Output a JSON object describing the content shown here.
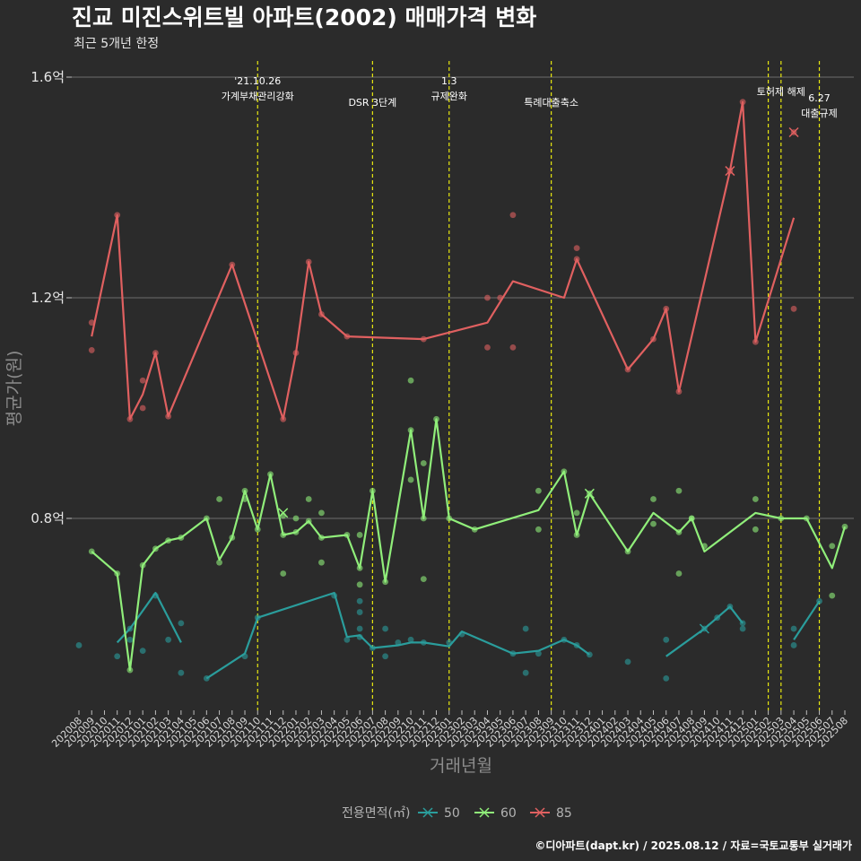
{
  "header": {
    "title": "진교 미진스위트빌 아파트(2002) 매매가격 변화",
    "subtitle": "최근 5개년 한정"
  },
  "caption": "©디아파트(dapt.kr) / 2025.08.12 / 자료=국토교통부 실거래가",
  "chart_data": {
    "type": "line",
    "xlabel": "거래년월",
    "ylabel": "평균가(원)",
    "x_categories": [
      "202008",
      "202009",
      "202010",
      "202011",
      "202012",
      "202101",
      "202102",
      "202103",
      "202104",
      "202105",
      "202106",
      "202107",
      "202108",
      "202109",
      "202110",
      "202111",
      "202112",
      "202201",
      "202202",
      "202203",
      "202204",
      "202205",
      "202206",
      "202207",
      "202208",
      "202209",
      "202210",
      "202211",
      "202212",
      "202301",
      "202302",
      "202303",
      "202304",
      "202305",
      "202306",
      "202307",
      "202308",
      "202309",
      "202310",
      "202311",
      "202312",
      "202401",
      "202402",
      "202403",
      "202404",
      "202405",
      "202406",
      "202407",
      "202408",
      "202409",
      "202410",
      "202411",
      "202412",
      "202501",
      "202502",
      "202503",
      "202504",
      "202505",
      "202506",
      "202507",
      "202508"
    ],
    "ylim": [
      0.45,
      1.64
    ],
    "y_ticks": [
      0.8,
      1.2,
      1.6
    ],
    "y_tick_labels": [
      "0.8억",
      "1.2억",
      "1.6억"
    ],
    "grid": true,
    "legend": {
      "title": "전용면적(㎡)",
      "position": "bottom",
      "entries": [
        "50",
        "60",
        "85"
      ]
    },
    "series": [
      {
        "name": "50",
        "color": "#2a9d9c",
        "line": [
          [
            "202011",
            0.575
          ],
          [
            "202012",
            0.6
          ],
          [
            "202102",
            0.665
          ],
          [
            "202104",
            0.575
          ],
          null,
          [
            "202106",
            0.51
          ],
          [
            "202109",
            0.555
          ],
          [
            "202110",
            0.62
          ],
          [
            "202204",
            0.665
          ],
          [
            "202205",
            0.585
          ],
          [
            "202206",
            0.588
          ],
          [
            "202207",
            0.565
          ],
          [
            "202209",
            0.57
          ],
          [
            "202210",
            0.575
          ],
          [
            "202211",
            0.575
          ],
          [
            "202301",
            0.568
          ],
          [
            "202302",
            0.595
          ],
          [
            "202306",
            0.555
          ],
          [
            "202308",
            0.56
          ],
          [
            "202310",
            0.58
          ],
          [
            "202311",
            0.57
          ],
          [
            "202312",
            0.553
          ],
          null,
          [
            "202406",
            0.55
          ],
          [
            "202409",
            0.6
          ],
          [
            "202410",
            0.62
          ],
          [
            "202411",
            0.64
          ],
          [
            "202412",
            0.61
          ],
          null,
          [
            "202504",
            0.58
          ],
          [
            "202506",
            0.65
          ]
        ],
        "points": [
          [
            "202008",
            0.57
          ],
          [
            "202011",
            0.55
          ],
          [
            "202012",
            0.6
          ],
          [
            "202012",
            0.58
          ],
          [
            "202101",
            0.56
          ],
          [
            "202102",
            0.66
          ],
          [
            "202103",
            0.58
          ],
          [
            "202104",
            0.61
          ],
          [
            "202104",
            0.52
          ],
          [
            "202106",
            0.51
          ],
          [
            "202109",
            0.55
          ],
          [
            "202110",
            0.62
          ],
          [
            "202204",
            0.66
          ],
          [
            "202205",
            0.58
          ],
          [
            "202206",
            0.6
          ],
          [
            "202206",
            0.585
          ],
          [
            "202206",
            0.63
          ],
          [
            "202206",
            0.65
          ],
          [
            "202207",
            0.565
          ],
          [
            "202208",
            0.6
          ],
          [
            "202208",
            0.55
          ],
          [
            "202209",
            0.575
          ],
          [
            "202210",
            0.58
          ],
          [
            "202211",
            0.575
          ],
          [
            "202301",
            0.575
          ],
          [
            "202302",
            0.59
          ],
          [
            "202306",
            0.555
          ],
          [
            "202307",
            0.6
          ],
          [
            "202307",
            0.52
          ],
          [
            "202308",
            0.555
          ],
          [
            "202310",
            0.58
          ],
          [
            "202311",
            0.57
          ],
          [
            "202312",
            0.553
          ],
          [
            "202403",
            0.54
          ],
          [
            "202406",
            0.58
          ],
          [
            "202406",
            0.51
          ],
          [
            "202409",
            0.6
          ],
          [
            "202410",
            0.62
          ],
          [
            "202411",
            0.64
          ],
          [
            "202412",
            0.61
          ],
          [
            "202412",
            0.6
          ],
          [
            "202504",
            0.6
          ],
          [
            "202504",
            0.57
          ],
          [
            "202506",
            0.65
          ]
        ],
        "x_marks": [
          [
            "202409",
            0.6
          ]
        ]
      },
      {
        "name": "60",
        "color": "#90ee7a",
        "line": [
          [
            "202009",
            0.74
          ],
          [
            "202011",
            0.7
          ],
          [
            "202012",
            0.525
          ],
          [
            "202101",
            0.715
          ],
          [
            "202102",
            0.745
          ],
          [
            "202103",
            0.76
          ],
          [
            "202104",
            0.765
          ],
          [
            "202106",
            0.8
          ],
          [
            "202107",
            0.725
          ],
          [
            "202108",
            0.765
          ],
          [
            "202109",
            0.85
          ],
          [
            "202110",
            0.78
          ],
          [
            "202111",
            0.88
          ],
          [
            "202112",
            0.77
          ],
          [
            "202201",
            0.775
          ],
          [
            "202202",
            0.795
          ],
          [
            "202203",
            0.765
          ],
          [
            "202205",
            0.77
          ],
          [
            "202206",
            0.71
          ],
          [
            "202207",
            0.85
          ],
          [
            "202208",
            0.685
          ],
          [
            "202210",
            0.96
          ],
          [
            "202211",
            0.8
          ],
          [
            "202212",
            0.98
          ],
          [
            "202301",
            0.8
          ],
          [
            "202303",
            0.78
          ],
          [
            "202308",
            0.815
          ],
          [
            "202310",
            0.885
          ],
          [
            "202311",
            0.77
          ],
          [
            "202312",
            0.845
          ],
          [
            "202403",
            0.74
          ],
          [
            "202405",
            0.81
          ],
          [
            "202407",
            0.775
          ],
          [
            "202408",
            0.8
          ],
          [
            "202409",
            0.74
          ],
          [
            "202501",
            0.81
          ],
          [
            "202503",
            0.8
          ],
          [
            "202505",
            0.8
          ],
          [
            "202507",
            0.71
          ],
          [
            "202508",
            0.785
          ]
        ],
        "points": [
          [
            "202009",
            0.74
          ],
          [
            "202011",
            0.7
          ],
          [
            "202012",
            0.525
          ],
          [
            "202101",
            0.715
          ],
          [
            "202102",
            0.745
          ],
          [
            "202103",
            0.76
          ],
          [
            "202104",
            0.765
          ],
          [
            "202106",
            0.8
          ],
          [
            "202107",
            0.835
          ],
          [
            "202107",
            0.72
          ],
          [
            "202108",
            0.765
          ],
          [
            "202109",
            0.85
          ],
          [
            "202109",
            0.835
          ],
          [
            "202110",
            0.78
          ],
          [
            "202111",
            0.88
          ],
          [
            "202112",
            0.805
          ],
          [
            "202112",
            0.77
          ],
          [
            "202112",
            0.7
          ],
          [
            "202201",
            0.8
          ],
          [
            "202201",
            0.775
          ],
          [
            "202202",
            0.835
          ],
          [
            "202202",
            0.795
          ],
          [
            "202203",
            0.81
          ],
          [
            "202203",
            0.765
          ],
          [
            "202203",
            0.72
          ],
          [
            "202205",
            0.77
          ],
          [
            "202206",
            0.77
          ],
          [
            "202206",
            0.71
          ],
          [
            "202206",
            0.68
          ],
          [
            "202207",
            0.85
          ],
          [
            "202208",
            0.685
          ],
          [
            "202210",
            0.96
          ],
          [
            "202210",
            1.05
          ],
          [
            "202210",
            0.87
          ],
          [
            "202211",
            0.9
          ],
          [
            "202211",
            0.8
          ],
          [
            "202211",
            0.69
          ],
          [
            "202212",
            0.98
          ],
          [
            "202301",
            0.8
          ],
          [
            "202303",
            0.78
          ],
          [
            "202308",
            0.85
          ],
          [
            "202308",
            0.78
          ],
          [
            "202310",
            0.885
          ],
          [
            "202311",
            0.81
          ],
          [
            "202311",
            0.77
          ],
          [
            "202312",
            0.845
          ],
          [
            "202403",
            0.74
          ],
          [
            "202405",
            0.835
          ],
          [
            "202405",
            0.79
          ],
          [
            "202407",
            0.85
          ],
          [
            "202407",
            0.7
          ],
          [
            "202407",
            0.775
          ],
          [
            "202408",
            0.8
          ],
          [
            "202408",
            0.8
          ],
          [
            "202409",
            0.75
          ],
          [
            "202501",
            0.835
          ],
          [
            "202501",
            0.78
          ],
          [
            "202503",
            0.8
          ],
          [
            "202505",
            0.8
          ],
          [
            "202507",
            0.75
          ],
          [
            "202507",
            0.66
          ],
          [
            "202508",
            0.785
          ]
        ],
        "x_marks": [
          [
            "202112",
            0.81
          ],
          [
            "202312",
            0.845
          ]
        ]
      },
      {
        "name": "85",
        "color": "#e06060",
        "line": [
          [
            "202009",
            1.13
          ],
          [
            "202011",
            1.35
          ],
          [
            "202012",
            0.98
          ],
          [
            "202101",
            1.025
          ],
          [
            "202102",
            1.1
          ],
          [
            "202103",
            0.985
          ],
          [
            "202108",
            1.26
          ],
          [
            "202112",
            0.98
          ],
          [
            "202201",
            1.1
          ],
          [
            "202202",
            1.265
          ],
          [
            "202203",
            1.17
          ],
          [
            "202205",
            1.13
          ],
          [
            "202211",
            1.125
          ],
          [
            "202304",
            1.155
          ],
          [
            "202306",
            1.23
          ],
          [
            "202310",
            1.2
          ],
          [
            "202311",
            1.27
          ],
          [
            "202403",
            1.07
          ],
          [
            "202405",
            1.125
          ],
          [
            "202406",
            1.18
          ],
          [
            "202407",
            1.03
          ],
          [
            "202411",
            1.43
          ],
          [
            "202412",
            1.555
          ],
          [
            "202501",
            1.12
          ],
          [
            "202504",
            1.345
          ]
        ],
        "points": [
          [
            "202009",
            1.155
          ],
          [
            "202009",
            1.105
          ],
          [
            "202011",
            1.35
          ],
          [
            "202012",
            0.98
          ],
          [
            "202101",
            1.05
          ],
          [
            "202101",
            1.0
          ],
          [
            "202102",
            1.1
          ],
          [
            "202103",
            0.985
          ],
          [
            "202108",
            1.26
          ],
          [
            "202112",
            0.98
          ],
          [
            "202201",
            1.1
          ],
          [
            "202202",
            1.265
          ],
          [
            "202203",
            1.17
          ],
          [
            "202205",
            1.13
          ],
          [
            "202211",
            1.125
          ],
          [
            "202304",
            1.2
          ],
          [
            "202304",
            1.11
          ],
          [
            "202305",
            1.2
          ],
          [
            "202306",
            1.35
          ],
          [
            "202306",
            1.11
          ],
          [
            "202311",
            1.29
          ],
          [
            "202311",
            1.27
          ],
          [
            "202403",
            1.07
          ],
          [
            "202405",
            1.125
          ],
          [
            "202406",
            1.18
          ],
          [
            "202407",
            1.03
          ],
          [
            "202411",
            1.43
          ],
          [
            "202412",
            1.555
          ],
          [
            "202501",
            1.12
          ],
          [
            "202504",
            1.5
          ],
          [
            "202504",
            1.18
          ]
        ],
        "x_marks": [
          [
            "202411",
            1.43
          ],
          [
            "202504",
            1.5
          ]
        ]
      }
    ],
    "events": [
      {
        "x": "202110",
        "lines": [
          "'21.10.26",
          "가계부채관리강화"
        ],
        "row": 0
      },
      {
        "x": "202207",
        "lines": [
          "DSR 3단계"
        ],
        "row": 2
      },
      {
        "x": "202301",
        "lines": [
          "1.3",
          "규제완화"
        ],
        "row": 0
      },
      {
        "x": "202309",
        "lines": [
          "특례대출축소"
        ],
        "row": 2
      },
      {
        "x": "202502",
        "lines": [],
        "row": 0
      },
      {
        "x": "202503",
        "lines": [
          "토허제 해제"
        ],
        "row": 1
      },
      {
        "x": "202506",
        "lines": [
          "6.27",
          "대출규제"
        ],
        "row": 1.6
      }
    ]
  }
}
